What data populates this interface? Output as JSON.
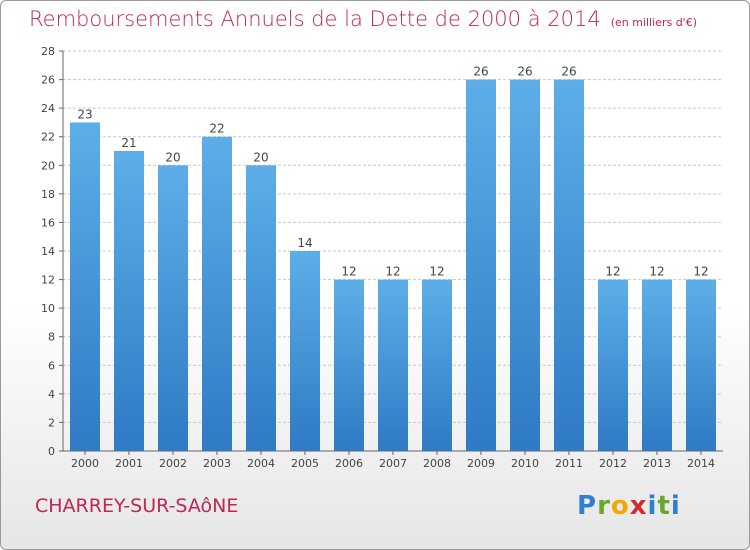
{
  "title": "Remboursements Annuels de la Dette de 2000 à 2014",
  "unit_note": "(en milliers d'€)",
  "commune": "CHARREY-SUR-SAôNE",
  "logo": {
    "letters": [
      "P",
      "r",
      "o",
      "x",
      "i",
      "t",
      "i"
    ],
    "colors": [
      "#2f7fd0",
      "#6aa82a",
      "#f2a800",
      "#d42b2b",
      "#2f7fd0",
      "#6aa82a",
      "#2f7fd0"
    ]
  },
  "colors": {
    "title": "#c0264f",
    "bar_light": "#5daee8",
    "bar_dark": "#2f7ac4",
    "grid": "#c8c8c8"
  },
  "chart_data": {
    "type": "bar",
    "categories": [
      "2000",
      "2001",
      "2002",
      "2003",
      "2004",
      "2005",
      "2006",
      "2007",
      "2008",
      "2009",
      "2010",
      "2011",
      "2012",
      "2013",
      "2014"
    ],
    "values": [
      23,
      21,
      20,
      22,
      20,
      14,
      12,
      12,
      12,
      26,
      26,
      26,
      12,
      12,
      12
    ],
    "ylim": [
      0,
      28
    ],
    "yticks": [
      0,
      2,
      4,
      6,
      8,
      10,
      12,
      14,
      16,
      18,
      20,
      22,
      24,
      26,
      28
    ],
    "grid": true
  }
}
